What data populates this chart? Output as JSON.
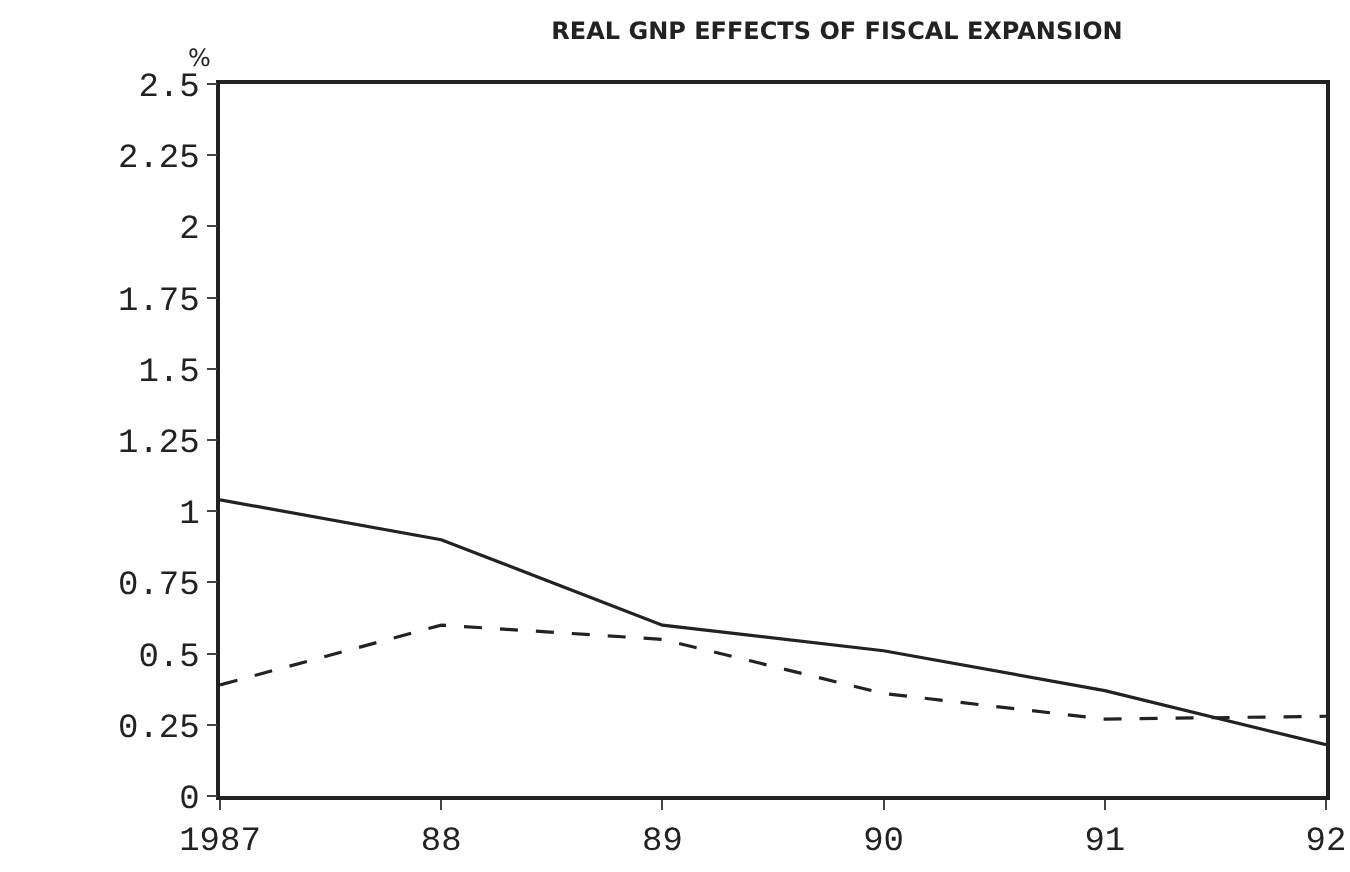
{
  "chart_data": {
    "type": "line",
    "title": "REAL GNP EFFECTS OF FISCAL EXPANSION",
    "ylabel": "%",
    "x": [
      1987,
      1988,
      1989,
      1990,
      1991,
      1992
    ],
    "series": [
      {
        "color": "#222222",
        "line_style": "solid",
        "values": [
          1.04,
          0.9,
          0.6,
          0.51,
          0.37,
          0.18
        ]
      },
      {
        "color": "#222222",
        "line_style": "dashed",
        "values": [
          0.39,
          0.6,
          0.55,
          0.36,
          0.27,
          0.28
        ]
      }
    ],
    "xlim": [
      1987,
      1992
    ],
    "xticks": [
      {
        "value": 1987,
        "label": "1987"
      },
      {
        "value": 1988,
        "label": "88"
      },
      {
        "value": 1989,
        "label": "89"
      },
      {
        "value": 1990,
        "label": "90"
      },
      {
        "value": 1991,
        "label": "91"
      },
      {
        "value": 1992,
        "label": "92"
      }
    ],
    "ylim": [
      0,
      2.5
    ],
    "yticks": [
      0,
      0.25,
      0.5,
      0.75,
      1,
      1.25,
      1.5,
      1.75,
      2,
      2.25,
      2.5
    ]
  }
}
